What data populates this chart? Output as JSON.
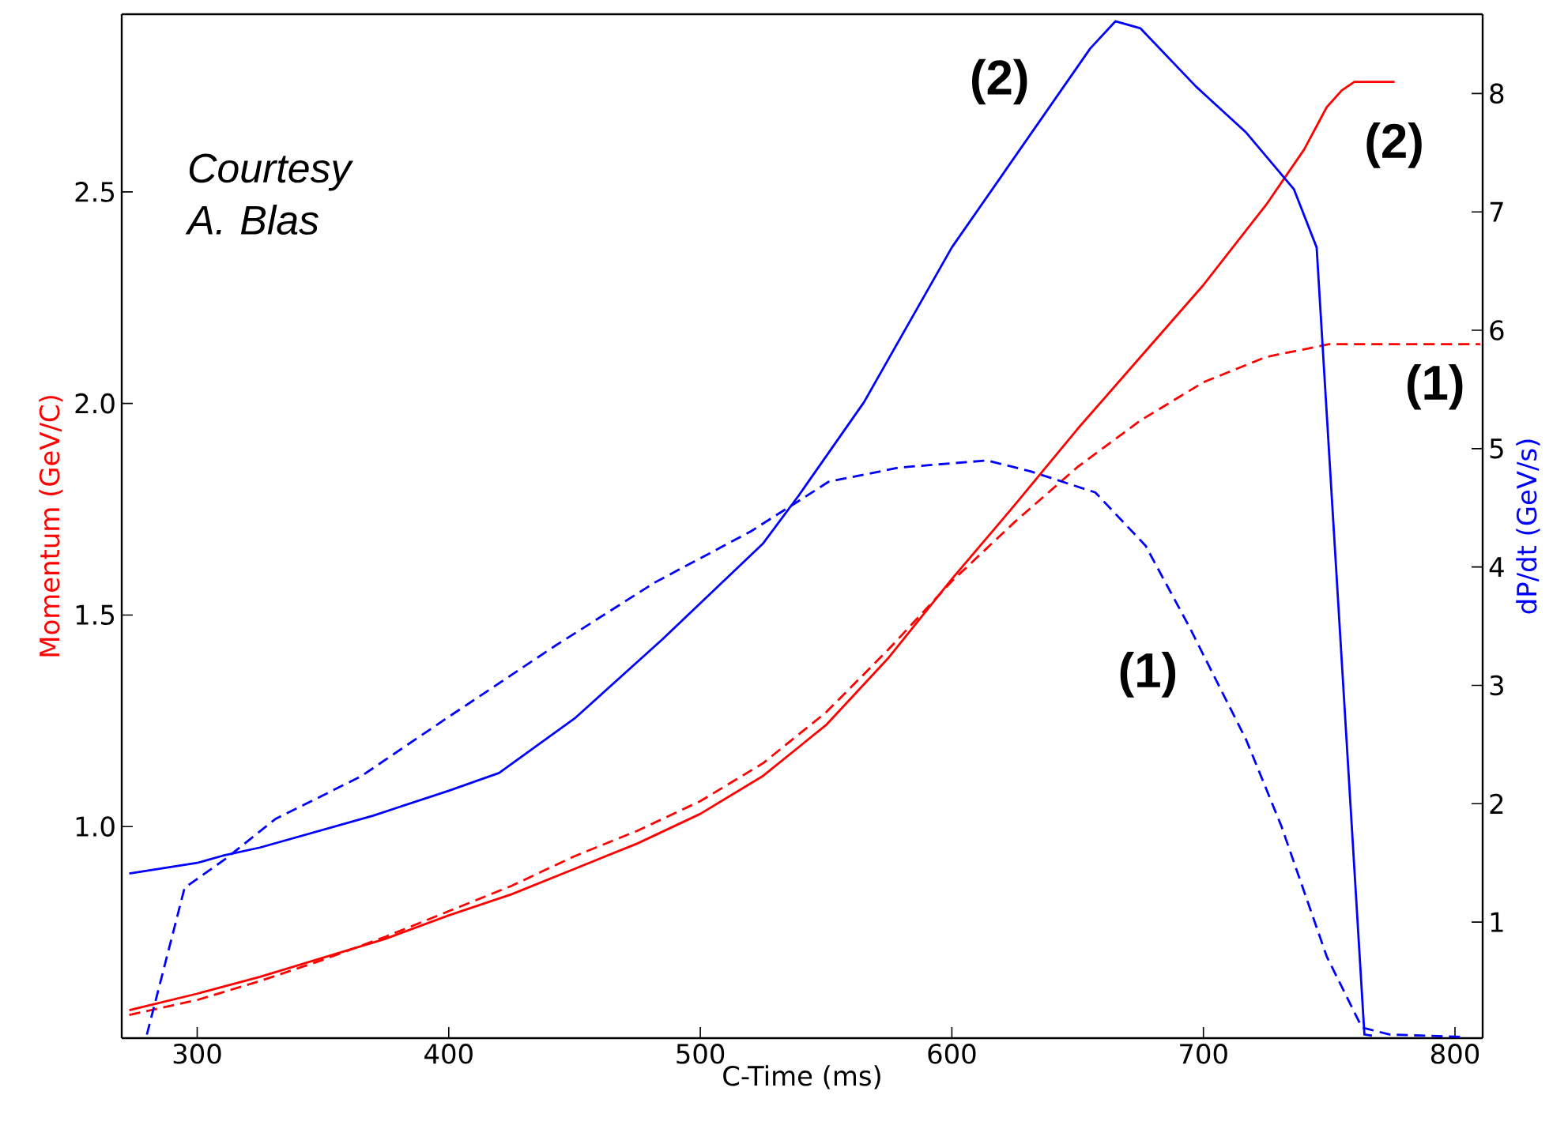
{
  "chart_data": {
    "type": "line",
    "xlabel": "C-Time (ms)",
    "ylabel": "Momentum (GeV/C)",
    "y2label": "dP/dt (GeV/s)",
    "xlim": [
      270,
      811
    ],
    "xticks": [
      300,
      400,
      500,
      600,
      700,
      800
    ],
    "ylim": [
      0.5,
      2.92
    ],
    "yticks": [
      {
        "value": 1,
        "label": "1.0"
      },
      1.5,
      {
        "value": 2,
        "label": "2.0"
      },
      2.5
    ],
    "y2lim": [
      0.02,
      8.67
    ],
    "y2ticks": [
      1,
      2,
      3,
      4,
      5,
      6,
      7,
      8
    ],
    "grid": false,
    "marker": "none",
    "series": [
      {
        "color": "#ff0000",
        "line_style": "solid",
        "x": [
          273,
          300,
          325,
          350,
          375,
          400,
          425,
          450,
          475,
          500,
          525,
          550,
          575,
          600,
          625,
          650,
          675,
          700,
          725,
          740,
          749,
          755,
          760,
          776
        ],
        "values": [
          0.566,
          0.605,
          0.645,
          0.69,
          0.735,
          0.79,
          0.84,
          0.9,
          0.96,
          1.03,
          1.12,
          1.24,
          1.4,
          1.585,
          1.76,
          1.94,
          2.11,
          2.28,
          2.47,
          2.6,
          2.7,
          2.74,
          2.76,
          2.76
        ]
      },
      {
        "color": "#ff0000",
        "line_style": "dashed",
        "x": [
          273,
          300,
          325,
          350,
          375,
          400,
          425,
          450,
          475,
          500,
          525,
          550,
          575,
          600,
          625,
          650,
          675,
          700,
          725,
          750,
          760,
          810
        ],
        "values": [
          0.555,
          0.59,
          0.635,
          0.685,
          0.74,
          0.8,
          0.86,
          0.93,
          0.99,
          1.06,
          1.15,
          1.27,
          1.42,
          1.58,
          1.72,
          1.85,
          1.96,
          2.05,
          2.11,
          2.14,
          2.14,
          2.14
        ]
      },
      {
        "color": "#0000ff",
        "line_style": "solid",
        "axis": "y2",
        "x": [
          273,
          300,
          310,
          325,
          370,
          400,
          420,
          450,
          485,
          525,
          539,
          565,
          600,
          655,
          665,
          675,
          697,
          717,
          736,
          745,
          764,
          767
        ],
        "values": [
          1.41,
          1.5,
          1.56,
          1.63,
          1.9,
          2.11,
          2.26,
          2.72,
          3.39,
          4.2,
          4.6,
          5.39,
          6.7,
          8.38,
          8.61,
          8.55,
          8.06,
          7.67,
          7.19,
          6.7,
          0.05,
          0.04
        ]
      },
      {
        "color": "#0000ff",
        "line_style": "dashed",
        "axis": "y2",
        "x": [
          280,
          295,
          311,
          331,
          365,
          399,
          442,
          482,
          520,
          540,
          551,
          579,
          614,
          631,
          657,
          677,
          694,
          717,
          731,
          749,
          763,
          774,
          803
        ],
        "values": [
          0.05,
          1.29,
          1.53,
          1.87,
          2.23,
          2.72,
          3.33,
          3.87,
          4.3,
          4.57,
          4.72,
          4.84,
          4.9,
          4.81,
          4.63,
          4.18,
          3.51,
          2.54,
          1.81,
          0.71,
          0.11,
          0.05,
          0.03
        ]
      }
    ],
    "annotations": [
      "Courtesy A. Blas",
      "(2)",
      "(2)",
      "(1)",
      "(1)"
    ]
  }
}
